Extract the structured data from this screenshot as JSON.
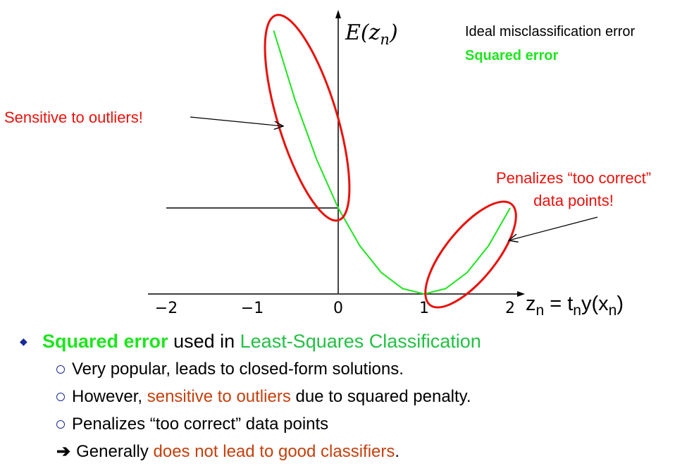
{
  "chart_data": {
    "type": "line",
    "title": "",
    "ylabel": "E(z_n)",
    "xlabel": "z_n = t_n y(x_n)",
    "xlim": [
      -2,
      2
    ],
    "ylim": [
      0,
      4
    ],
    "x_ticks": [
      "−2",
      "−1",
      "0",
      "1",
      "2"
    ],
    "legend": [
      {
        "name": "Ideal misclassification error",
        "color": "#000000"
      },
      {
        "name": "Squared error",
        "color": "#1ee51e"
      }
    ],
    "series": [
      {
        "name": "Ideal misclassification error",
        "color": "#000000",
        "x": [
          -2,
          0,
          0,
          2
        ],
        "y": [
          1,
          1,
          0,
          0
        ]
      },
      {
        "name": "Squared error",
        "color": "#1ee51e",
        "x": [
          -0.75,
          -0.5,
          -0.25,
          0,
          0.25,
          0.5,
          0.75,
          1,
          1.25,
          1.5,
          1.75,
          2
        ],
        "y": [
          3.0625,
          2.25,
          1.5625,
          1,
          0.5625,
          0.25,
          0.0625,
          0,
          0.0625,
          0.25,
          0.5625,
          1
        ]
      }
    ],
    "annotations": [
      {
        "text": "Sensitive to outliers!",
        "color": "#e8120c"
      },
      {
        "text_line1": "Penalizes “too correct”",
        "text_line2": "data points!",
        "color": "#e8120c"
      }
    ]
  },
  "bullets": {
    "main": {
      "a": "Squared error",
      "b": " used in ",
      "c": "Least-Squares Classification"
    },
    "sub1": "Very popular, leads to closed-form solutions.",
    "sub2": {
      "a": "However, ",
      "b": "sensitive to outliers",
      "c": " due to squared penalty."
    },
    "sub3": "Penalizes “too correct” data points",
    "sub4": {
      "a": "Generally ",
      "b": "does not lead to good classifiers",
      "c": "."
    }
  },
  "colors": {
    "accent_red": "#e8120c",
    "green": "#1ee51e",
    "bullet_blue": "#1a2a9a"
  }
}
